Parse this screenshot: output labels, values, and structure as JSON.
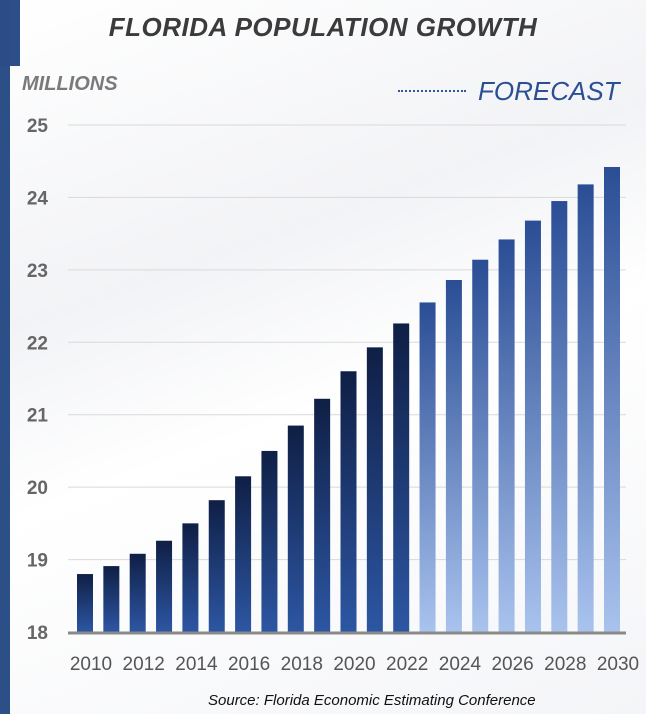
{
  "title": "FLORIDA POPULATION GROWTH",
  "unit_label": "MILLIONS",
  "legend_label": "FORECAST",
  "source": "Source:  Florida Economic Estimating Conference",
  "colors": {
    "historical_top": "#0f1f45",
    "historical_bottom": "#2d56a3",
    "forecast_top": "#2a4d95",
    "forecast_bottom": "#a9c3ee",
    "gridline": "#d9d9d9",
    "axis": "#8a8a8a"
  },
  "chart_data": {
    "type": "bar",
    "title": "FLORIDA POPULATION GROWTH",
    "ylabel": "MILLIONS",
    "ylim": [
      18,
      25
    ],
    "yticks": [
      18,
      19,
      20,
      21,
      22,
      23,
      24,
      25
    ],
    "grid": true,
    "legend": [
      {
        "name": "FORECAST",
        "position": "top-right"
      }
    ],
    "x": [
      2010,
      2011,
      2012,
      2013,
      2014,
      2015,
      2016,
      2017,
      2018,
      2019,
      2020,
      2021,
      2022,
      2023,
      2024,
      2025,
      2026,
      2027,
      2028,
      2029,
      2030
    ],
    "xtick_labels": [
      "2010",
      "2012",
      "2014",
      "2016",
      "2018",
      "2020",
      "2022",
      "2024",
      "2026",
      "2028",
      "2030"
    ],
    "values": [
      18.8,
      18.91,
      19.08,
      19.26,
      19.5,
      19.82,
      20.15,
      20.5,
      20.85,
      21.22,
      21.6,
      21.93,
      22.26,
      22.55,
      22.86,
      23.14,
      23.42,
      23.68,
      23.95,
      24.18,
      24.42
    ],
    "forecast_from": 2023
  }
}
